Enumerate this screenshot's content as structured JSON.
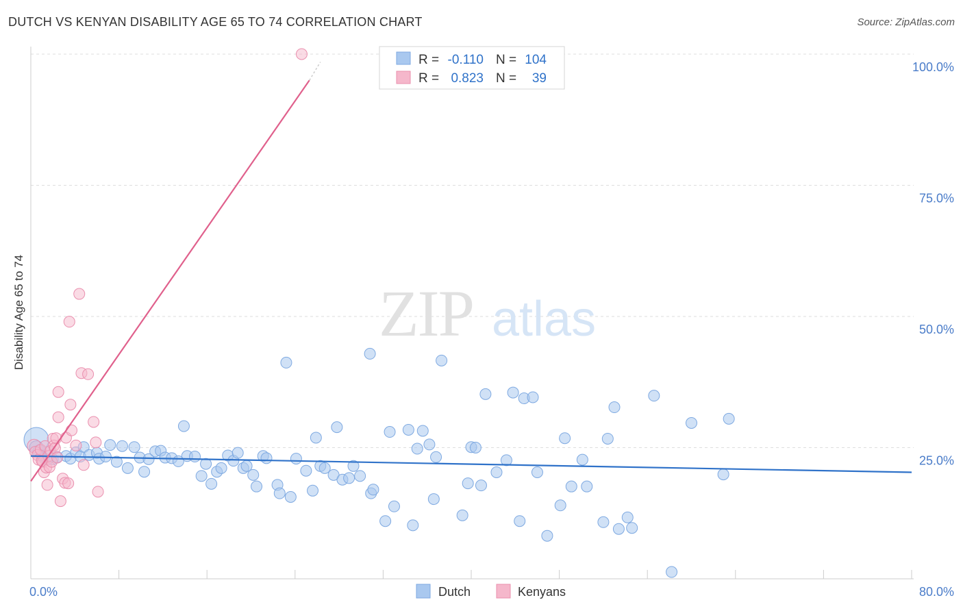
{
  "title": "DUTCH VS KENYAN DISABILITY AGE 65 TO 74 CORRELATION CHART",
  "source": "Source: ZipAtlas.com",
  "watermark": {
    "zip": "ZIP",
    "atlas": "atlas"
  },
  "colors": {
    "dutch_fill": "#a9c8ef",
    "dutch_stroke": "#7ea9e1",
    "dutch_line": "#2f72c9",
    "kenyan_fill": "#f5b7cb",
    "kenyan_stroke": "#ea8fae",
    "kenyan_line": "#e0608c",
    "tick_label": "#4a7cc9",
    "grid": "#dddddd"
  },
  "legend": {
    "dutch": {
      "r_label": "R =",
      "r_value": "-0.110",
      "n_label": "N =",
      "n_value": "104"
    },
    "kenyan": {
      "r_label": "R =",
      "r_value": "0.823",
      "n_label": "N =",
      "n_value": "39"
    }
  },
  "bottom_legend": {
    "dutch": "Dutch",
    "kenyan": "Kenyans"
  },
  "chart_data": {
    "type": "scatter",
    "title": "DUTCH VS KENYAN DISABILITY AGE 65 TO 74 CORRELATION CHART",
    "xlabel": "",
    "ylabel": "Disability Age 65 to 74",
    "xlim": [
      0,
      80
    ],
    "ylim": [
      0,
      100
    ],
    "x_tick_labels": [
      "0.0%",
      "80.0%"
    ],
    "y_ticks": [
      25,
      50,
      75,
      100
    ],
    "y_tick_labels": [
      "25.0%",
      "50.0%",
      "75.0%",
      "100.0%"
    ],
    "grid": true,
    "legend_placement": "top-center",
    "series": [
      {
        "name": "Dutch",
        "r": -0.11,
        "n": 104,
        "trend": {
          "x": [
            0,
            80
          ],
          "y": [
            23.4,
            20.3
          ]
        },
        "points": [
          [
            0.5,
            26.5,
            18
          ],
          [
            0.5,
            25,
            10
          ],
          [
            0.8,
            24.2,
            10
          ],
          [
            1,
            23.5,
            8
          ],
          [
            1.2,
            23,
            8
          ],
          [
            1.5,
            22.7,
            8
          ],
          [
            1.7,
            24.3,
            8
          ],
          [
            2.0,
            22.8,
            8
          ],
          [
            2.4,
            23.2,
            8
          ],
          [
            3.2,
            23.4,
            8
          ],
          [
            3.6,
            22.9,
            8
          ],
          [
            4.1,
            24.1,
            8
          ],
          [
            4.8,
            25.1,
            8
          ],
          [
            4.5,
            23.3,
            8
          ],
          [
            5.3,
            23.6,
            8
          ],
          [
            6.0,
            24.0,
            8
          ],
          [
            6.2,
            22.9,
            8
          ],
          [
            6.8,
            23.3,
            8
          ],
          [
            7.2,
            25.5,
            8
          ],
          [
            7.8,
            22.3,
            8
          ],
          [
            8.3,
            25.3,
            8
          ],
          [
            8.8,
            21.1,
            8
          ],
          [
            9.4,
            25.1,
            8
          ],
          [
            9.9,
            23.1,
            8
          ],
          [
            10.3,
            20.4,
            8
          ],
          [
            10.7,
            22.8,
            8
          ],
          [
            11.3,
            24.3,
            8
          ],
          [
            11.8,
            24.4,
            8
          ],
          [
            12.2,
            23.1,
            8
          ],
          [
            12.8,
            23.0,
            8
          ],
          [
            13.4,
            22.4,
            8
          ],
          [
            13.9,
            29.1,
            8
          ],
          [
            14.2,
            23.4,
            8
          ],
          [
            14.9,
            23.3,
            8
          ],
          [
            15.5,
            19.6,
            8
          ],
          [
            15.9,
            21.9,
            8
          ],
          [
            16.4,
            18.1,
            8
          ],
          [
            16.9,
            20.4,
            8
          ],
          [
            17.3,
            21.1,
            8
          ],
          [
            17.9,
            23.5,
            8
          ],
          [
            18.4,
            22.5,
            8
          ],
          [
            18.8,
            24.0,
            8
          ],
          [
            19.3,
            21.1,
            8
          ],
          [
            19.6,
            21.5,
            8
          ],
          [
            20.2,
            19.8,
            8
          ],
          [
            20.5,
            17.6,
            8
          ],
          [
            21.1,
            23.4,
            8
          ],
          [
            21.4,
            23.0,
            8
          ],
          [
            22.4,
            17.9,
            8
          ],
          [
            22.6,
            16.3,
            8
          ],
          [
            23.2,
            41.2,
            8
          ],
          [
            23.6,
            15.6,
            8
          ],
          [
            24.1,
            22.9,
            8
          ],
          [
            25.0,
            20.6,
            8
          ],
          [
            25.6,
            16.8,
            8
          ],
          [
            25.9,
            26.9,
            8
          ],
          [
            26.3,
            21.5,
            8
          ],
          [
            26.7,
            21.1,
            8
          ],
          [
            27.5,
            19.8,
            8
          ],
          [
            27.8,
            28.9,
            8
          ],
          [
            28.3,
            18.9,
            8
          ],
          [
            28.9,
            19.2,
            8
          ],
          [
            29.3,
            21.5,
            8
          ],
          [
            29.9,
            19.6,
            8
          ],
          [
            30.9,
            16.3,
            8
          ],
          [
            31.1,
            17.0,
            8
          ],
          [
            30.8,
            42.9,
            8
          ],
          [
            32.2,
            11.0,
            8
          ],
          [
            33.0,
            13.8,
            8
          ],
          [
            32.6,
            28.0,
            8
          ],
          [
            34.3,
            28.4,
            8
          ],
          [
            34.7,
            10.2,
            8
          ],
          [
            35.1,
            24.8,
            8
          ],
          [
            35.6,
            28.2,
            8
          ],
          [
            36.2,
            25.6,
            8
          ],
          [
            36.6,
            15.2,
            8
          ],
          [
            36.8,
            23.2,
            8
          ],
          [
            37.3,
            41.6,
            8
          ],
          [
            39.2,
            12.1,
            8
          ],
          [
            39.7,
            18.2,
            8
          ],
          [
            40.0,
            25.1,
            8
          ],
          [
            40.4,
            25.0,
            8
          ],
          [
            40.9,
            17.8,
            8
          ],
          [
            41.3,
            35.2,
            8
          ],
          [
            42.3,
            20.3,
            8
          ],
          [
            43.2,
            22.6,
            8
          ],
          [
            43.8,
            35.5,
            8
          ],
          [
            44.4,
            11.0,
            8
          ],
          [
            44.8,
            34.4,
            8
          ],
          [
            45.6,
            34.6,
            8
          ],
          [
            46.0,
            20.3,
            8
          ],
          [
            46.9,
            8.2,
            8
          ],
          [
            48.1,
            14.0,
            8
          ],
          [
            48.5,
            26.8,
            8
          ],
          [
            49.1,
            17.6,
            8
          ],
          [
            50.1,
            22.7,
            8
          ],
          [
            50.5,
            17.6,
            8
          ],
          [
            52.0,
            10.8,
            8
          ],
          [
            52.4,
            26.7,
            8
          ],
          [
            53.0,
            32.7,
            8
          ],
          [
            53.4,
            9.5,
            8
          ],
          [
            54.2,
            11.7,
            8
          ],
          [
            54.6,
            9.7,
            8
          ],
          [
            56.6,
            34.9,
            8
          ],
          [
            58.2,
            1.3,
            8
          ],
          [
            60.0,
            29.7,
            8
          ],
          [
            62.9,
            19.9,
            8
          ],
          [
            63.4,
            30.5,
            8
          ]
        ]
      },
      {
        "name": "Kenyans",
        "r": 0.823,
        "n": 39,
        "trend": {
          "x": [
            0,
            25.3
          ],
          "y": [
            18.6,
            95
          ]
        },
        "trend_dashed": {
          "x": [
            25.3,
            26.3
          ],
          "y": [
            95,
            98.5
          ]
        },
        "points": [
          [
            0.3,
            25.3,
            10
          ],
          [
            0.4,
            24.2,
            8
          ],
          [
            0.6,
            23.6,
            8
          ],
          [
            0.7,
            22.7,
            8
          ],
          [
            0.9,
            24.6,
            8
          ],
          [
            1.1,
            22.3,
            8
          ],
          [
            1.2,
            20.3,
            8
          ],
          [
            1.3,
            25.3,
            8
          ],
          [
            1.4,
            21.2,
            8
          ],
          [
            1.5,
            17.9,
            8
          ],
          [
            1.6,
            23.4,
            8
          ],
          [
            1.7,
            21.3,
            8
          ],
          [
            1.8,
            24.4,
            8
          ],
          [
            1.9,
            22.3,
            8
          ],
          [
            2.0,
            26.7,
            8
          ],
          [
            2.1,
            25.4,
            8
          ],
          [
            2.2,
            24.9,
            8
          ],
          [
            2.3,
            26.8,
            8
          ],
          [
            2.4,
            23.1,
            8
          ],
          [
            2.5,
            30.8,
            8
          ],
          [
            2.5,
            35.6,
            8
          ],
          [
            2.7,
            14.8,
            8
          ],
          [
            2.9,
            19.1,
            8
          ],
          [
            3.1,
            18.3,
            8
          ],
          [
            3.2,
            26.9,
            8
          ],
          [
            3.4,
            18.2,
            8
          ],
          [
            3.5,
            49.0,
            8
          ],
          [
            3.6,
            33.2,
            8
          ],
          [
            3.7,
            28.3,
            8
          ],
          [
            4.1,
            25.4,
            8
          ],
          [
            4.4,
            54.3,
            8
          ],
          [
            4.6,
            39.2,
            8
          ],
          [
            4.8,
            21.7,
            8
          ],
          [
            5.2,
            39.0,
            8
          ],
          [
            5.7,
            29.9,
            8
          ],
          [
            5.9,
            26.0,
            8
          ],
          [
            6.1,
            16.6,
            8
          ],
          [
            24.6,
            100.0,
            8
          ],
          [
            1.0,
            22.5,
            8
          ]
        ]
      }
    ]
  }
}
